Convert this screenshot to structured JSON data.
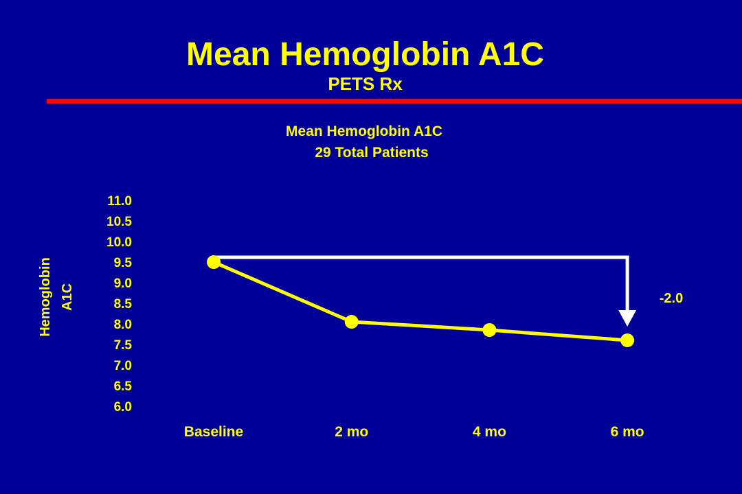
{
  "slide": {
    "title": "Mean Hemoglobin A1C",
    "subtitle": "PETS Rx"
  },
  "colors": {
    "background": "#000099",
    "text": "#ffff00",
    "divider": "#ff0000",
    "series": "#ffff00",
    "arrow": "#ffffff"
  },
  "chart_data": {
    "type": "line",
    "title": "Mean Hemoglobin A1C",
    "subtitle": "29 Total Patients",
    "ylabel_lines": [
      "Hemoglobin",
      "A1C"
    ],
    "xlabel": "",
    "categories": [
      "Baseline",
      "2 mo",
      "4 mo",
      "6 mo"
    ],
    "series": [
      {
        "values": [
          9.5,
          8.05,
          7.85,
          7.6
        ]
      }
    ],
    "ylim": [
      6.0,
      11.0
    ],
    "yticks": [
      "11.0",
      "10.5",
      "10.0",
      "9.5",
      "9.0",
      "8.5",
      "8.0",
      "7.5",
      "7.0",
      "6.5",
      "6.0"
    ],
    "grid": false,
    "legend": "none",
    "annotation": {
      "text": "-2.0",
      "from_category": "Baseline",
      "to_category": "6 mo"
    }
  }
}
